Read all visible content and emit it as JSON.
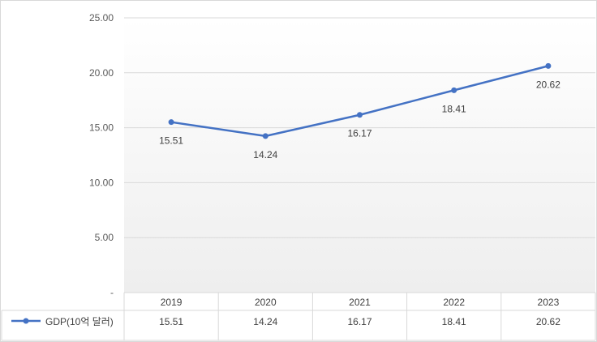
{
  "chart_data": {
    "type": "line",
    "categories": [
      "2019",
      "2020",
      "2021",
      "2022",
      "2023"
    ],
    "series": [
      {
        "name": "GDP(10억 달러)",
        "values": [
          15.51,
          14.24,
          16.17,
          18.41,
          20.62
        ],
        "data_labels": [
          "15.51",
          "14.24",
          "16.17",
          "18.41",
          "20.62"
        ]
      }
    ],
    "y_ticks": [
      "-",
      "5.00",
      "10.00",
      "15.00",
      "20.00",
      "25.00"
    ],
    "ylim": [
      0,
      25
    ],
    "grid": true,
    "legend_placement": "data table row below plot",
    "colors": {
      "line": "#4472C4",
      "grid": "#D9D9D9",
      "border": "#D9D9D9"
    }
  }
}
